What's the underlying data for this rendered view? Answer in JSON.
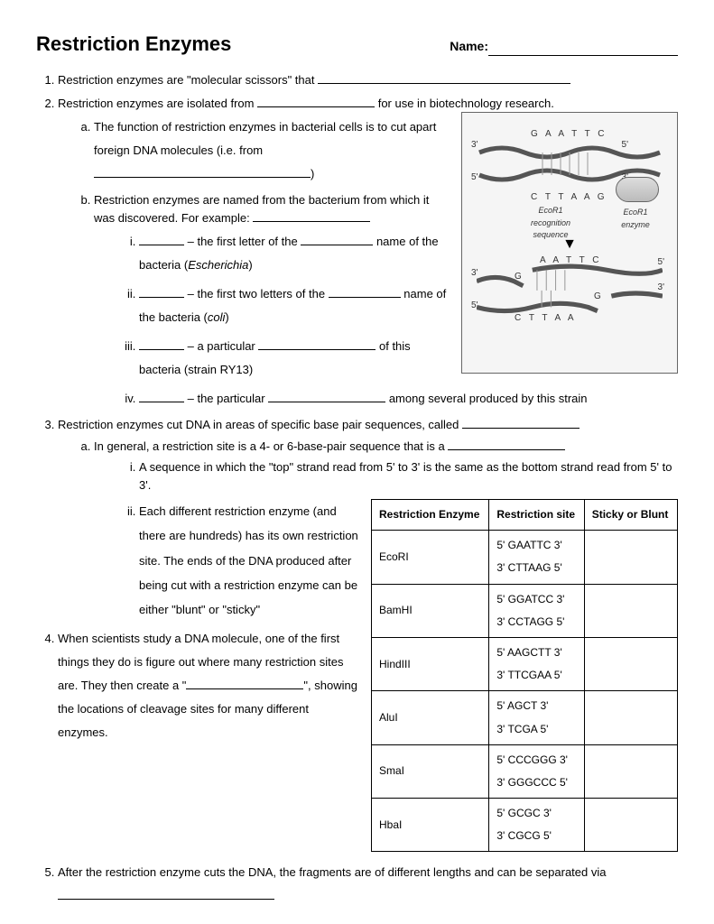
{
  "title": "Restriction Enzymes",
  "name_label": "Name:",
  "items": {
    "q1": "Restriction enzymes are \"molecular scissors\" that ",
    "q2_a": "Restriction enzymes are isolated from ",
    "q2_b": " for use in biotechnology research.",
    "q2a": "The function of restriction enzymes in bacterial cells is to cut apart foreign DNA molecules  (i.e. from ",
    "q2a_end": ")",
    "q2b": "Restriction enzymes are named from the bacterium from which it was discovered.  For example:  ",
    "q2bi_a": " – the first letter of the ",
    "q2bi_b": " name of the bacteria (",
    "q2bi_c": "Escherichia",
    "q2bi_d": ")",
    "q2bii_a": " – the first two letters of the ",
    "q2bii_b": " name of the bacteria (",
    "q2bii_c": "coli",
    "q2bii_d": ")",
    "q2biii_a": " – a particular ",
    "q2biii_b": " of this bacteria (strain RY13)",
    "q2biv_a": " – the particular ",
    "q2biv_b": " among several produced by this strain",
    "q3": "Restriction enzymes cut DNA in areas of specific base pair sequences, called ",
    "q3a": "In general, a restriction site is a 4- or 6-base-pair sequence that is a ",
    "q3ai": "A sequence in which the \"top\" strand read from 5' to 3' is the same as the bottom strand read from 5' to 3'.",
    "q3aii": "Each different restriction enzyme (and there are hundreds) has its own restriction site.  The ends of the DNA produced after being cut with a restriction enzyme can be either \"blunt\" or \"sticky\"",
    "q4_a": "When scientists study a DNA molecule, one of the first things they do is figure out where many restriction sites are. They then create a \"",
    "q4_b": "\", showing the locations of cleavage sites for many different enzymes.",
    "q5": "After the restriction enzyme cuts the DNA, the fragments are of different lengths and can be separated via"
  },
  "diagram": {
    "seq_top": "G A A T T C",
    "seq_bot": "C T T A A G",
    "recog": "EcoR1\nrecognition\nsequence",
    "enzyme": "EcoR1 enzyme",
    "cut_top": "A A T T C",
    "cut_bot": "C T T A A",
    "g": "G",
    "p5": "5'",
    "p3": "3'"
  },
  "table": {
    "headers": [
      "Restriction Enzyme",
      "Restriction site",
      "Sticky or Blunt"
    ],
    "rows": [
      {
        "enzyme": "EcoRI",
        "site1": "5' GAATTC 3'",
        "site2": "3' CTTAAG 5'"
      },
      {
        "enzyme": "BamHI",
        "site1": "5' GGATCC 3'",
        "site2": "3' CCTAGG 5'"
      },
      {
        "enzyme": "HindIII",
        "site1": "5' AAGCTT 3'",
        "site2": "3' TTCGAA 5'"
      },
      {
        "enzyme": "AluI",
        "site1": "5' AGCT 3'",
        "site2": "3' TCGA 5'"
      },
      {
        "enzyme": "SmaI",
        "site1": "5' CCCGGG 3'",
        "site2": "3' GGGCCC 5'"
      },
      {
        "enzyme": "HbaI",
        "site1": "5' GCGC 3'",
        "site2": "3' CGCG 5'"
      }
    ]
  }
}
